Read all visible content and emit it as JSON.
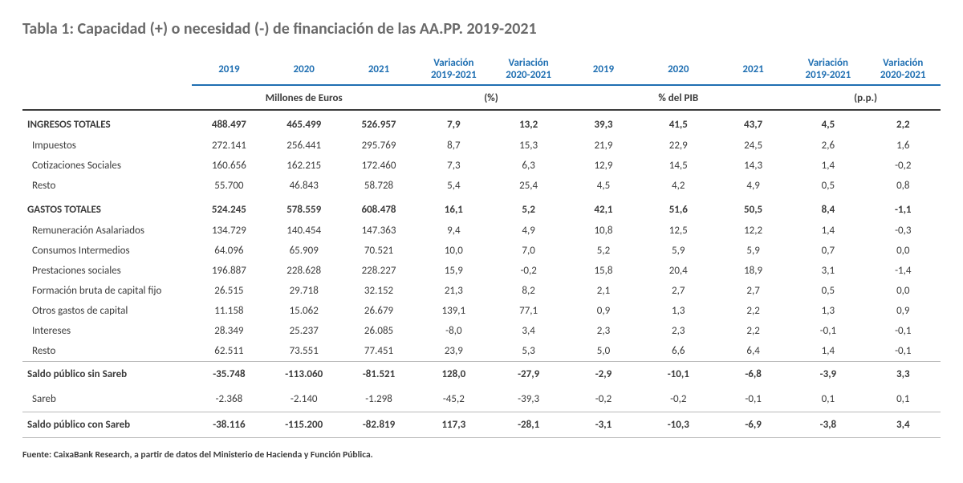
{
  "title": "Tabla 1: Capacidad (+) o necesidad (-) de financiación de las AA.PP. 2019-2021",
  "headers": {
    "y2019": "2019",
    "y2020": "2020",
    "y2021": "2021",
    "var1921": "Variación 2019-2021",
    "var2021": "Variación 2020-2021"
  },
  "units": {
    "millones": "Millones de Euros",
    "pct": "(%)",
    "pctpib": "% del PIB",
    "pp": "(p.p.)"
  },
  "rows": {
    "ingresos": {
      "label": "INGRESOS TOTALES",
      "m19": "488.497",
      "m20": "465.499",
      "m21": "526.957",
      "v1": "7,9",
      "v2": "13,2",
      "p19": "39,3",
      "p20": "41,5",
      "p21": "43,7",
      "d1": "4,5",
      "d2": "2,2"
    },
    "impuestos": {
      "label": "Impuestos",
      "m19": "272.141",
      "m20": "256.441",
      "m21": "295.769",
      "v1": "8,7",
      "v2": "15,3",
      "p19": "21,9",
      "p20": "22,9",
      "p21": "24,5",
      "d1": "2,6",
      "d2": "1,6"
    },
    "cotiz": {
      "label": "Cotizaciones Sociales",
      "m19": "160.656",
      "m20": "162.215",
      "m21": "172.460",
      "v1": "7,3",
      "v2": "6,3",
      "p19": "12,9",
      "p20": "14,5",
      "p21": "14,3",
      "d1": "1,4",
      "d2": "-0,2"
    },
    "resto1": {
      "label": "Resto",
      "m19": "55.700",
      "m20": "46.843",
      "m21": "58.728",
      "v1": "5,4",
      "v2": "25,4",
      "p19": "4,5",
      "p20": "4,2",
      "p21": "4,9",
      "d1": "0,5",
      "d2": "0,8"
    },
    "gastos": {
      "label": "GASTOS TOTALES",
      "m19": "524.245",
      "m20": "578.559",
      "m21": "608.478",
      "v1": "16,1",
      "v2": "5,2",
      "p19": "42,1",
      "p20": "51,6",
      "p21": "50,5",
      "d1": "8,4",
      "d2": "-1,1"
    },
    "remun": {
      "label": "Remuneración Asalariados",
      "m19": "134.729",
      "m20": "140.454",
      "m21": "147.363",
      "v1": "9,4",
      "v2": "4,9",
      "p19": "10,8",
      "p20": "12,5",
      "p21": "12,2",
      "d1": "1,4",
      "d2": "-0,3"
    },
    "consumos": {
      "label": "Consumos Intermedios",
      "m19": "64.096",
      "m20": "65.909",
      "m21": "70.521",
      "v1": "10,0",
      "v2": "7,0",
      "p19": "5,2",
      "p20": "5,9",
      "p21": "5,9",
      "d1": "0,7",
      "d2": "0,0"
    },
    "prest": {
      "label": "Prestaciones sociales",
      "m19": "196.887",
      "m20": "228.628",
      "m21": "228.227",
      "v1": "15,9",
      "v2": "-0,2",
      "p19": "15,8",
      "p20": "20,4",
      "p21": "18,9",
      "d1": "3,1",
      "d2": "-1,4"
    },
    "fbkf": {
      "label": "Formación bruta de capital fijo",
      "m19": "26.515",
      "m20": "29.718",
      "m21": "32.152",
      "v1": "21,3",
      "v2": "8,2",
      "p19": "2,1",
      "p20": "2,7",
      "p21": "2,7",
      "d1": "0,5",
      "d2": "0,0"
    },
    "otroscap": {
      "label": "Otros gastos de capital",
      "m19": "11.158",
      "m20": "15.062",
      "m21": "26.679",
      "v1": "139,1",
      "v2": "77,1",
      "p19": "0,9",
      "p20": "1,3",
      "p21": "2,2",
      "d1": "1,3",
      "d2": "0,9"
    },
    "intereses": {
      "label": "Intereses",
      "m19": "28.349",
      "m20": "25.237",
      "m21": "26.085",
      "v1": "-8,0",
      "v2": "3,4",
      "p19": "2,3",
      "p20": "2,3",
      "p21": "2,2",
      "d1": "-0,1",
      "d2": "-0,1"
    },
    "resto2": {
      "label": "Resto",
      "m19": "62.511",
      "m20": "73.551",
      "m21": "77.451",
      "v1": "23,9",
      "v2": "5,3",
      "p19": "5,0",
      "p20": "6,6",
      "p21": "6,4",
      "d1": "1,4",
      "d2": "-0,1"
    },
    "saldo_sin": {
      "label": "Saldo público sin Sareb",
      "m19": "-35.748",
      "m20": "-113.060",
      "m21": "-81.521",
      "v1": "128,0",
      "v2": "-27,9",
      "p19": "-2,9",
      "p20": "-10,1",
      "p21": "-6,8",
      "d1": "-3,9",
      "d2": "3,3"
    },
    "sareb": {
      "label": "Sareb",
      "m19": "-2.368",
      "m20": "-2.140",
      "m21": "-1.298",
      "v1": "-45,2",
      "v2": "-39,3",
      "p19": "-0,2",
      "p20": "-0,2",
      "p21": "-0,1",
      "d1": "0,1",
      "d2": "0,1"
    },
    "saldo_con": {
      "label": "Saldo público con Sareb",
      "m19": "-38.116",
      "m20": "-115.200",
      "m21": "-82.819",
      "v1": "117,3",
      "v2": "-28,1",
      "p19": "-3,1",
      "p20": "-10,3",
      "p21": "-6,9",
      "d1": "-3,8",
      "d2": "3,4"
    }
  },
  "source": "Fuente: CaixaBank Research, a partir de datos del Ministerio de Hacienda y Función Pública."
}
